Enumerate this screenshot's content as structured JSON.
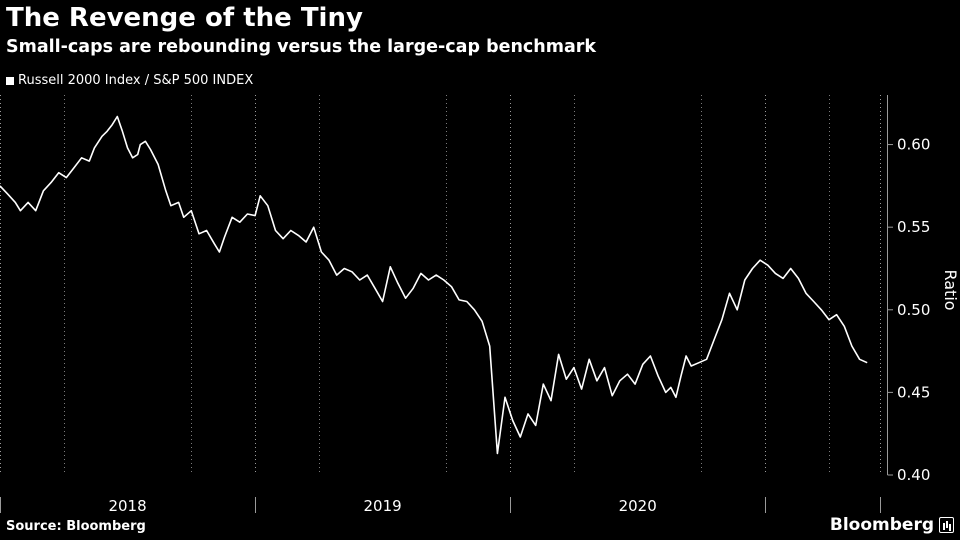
{
  "header": {
    "title": "The Revenge of the Tiny",
    "subtitle": "Small-caps are rebounding versus the large-cap benchmark"
  },
  "legend": {
    "label": "Russell 2000 Index / S&P 500 INDEX",
    "color": "#ffffff"
  },
  "footer": {
    "source": "Source: Bloomberg",
    "brand": "Bloomberg"
  },
  "colors": {
    "background": "#000000",
    "line": "#ffffff",
    "grid": "#9a9a9a",
    "text": "#ffffff"
  },
  "chart_data": {
    "type": "line",
    "title": "The Revenge of the Tiny",
    "subtitle": "Small-caps are rebounding versus the large-cap benchmark",
    "xlabel": "",
    "ylabel": "Ratio",
    "ylim": [
      0.4,
      0.63
    ],
    "yticks": [
      0.4,
      0.45,
      0.5,
      0.55,
      0.6
    ],
    "yticklabels": [
      "0.40",
      "0.45",
      "0.50",
      "0.55",
      "0.60"
    ],
    "xlim": [
      2017.5,
      2020.95
    ],
    "xticks": [
      2017.5,
      2018.5,
      2019.5,
      2020.5,
      2020.95
    ],
    "xticklabels": [
      {
        "label": "2018",
        "x": 2018.0
      },
      {
        "label": "2019",
        "x": 2019.0
      },
      {
        "label": "2020",
        "x": 2020.0
      }
    ],
    "gridlines": "vertical dotted at year boundaries and quarter ticks",
    "series": [
      {
        "name": "Russell 2000 Index / S&P 500 INDEX",
        "x": [
          2017.5,
          2017.53,
          2017.56,
          2017.58,
          2017.61,
          2017.64,
          2017.67,
          2017.7,
          2017.73,
          2017.76,
          2017.79,
          2017.82,
          2017.85,
          2017.87,
          2017.9,
          2017.92,
          2017.94,
          2017.96,
          2017.98,
          2018.0,
          2018.02,
          2018.04,
          2018.05,
          2018.07,
          2018.09,
          2018.12,
          2018.15,
          2018.17,
          2018.2,
          2018.22,
          2018.25,
          2018.28,
          2018.31,
          2018.34,
          2018.36,
          2018.38,
          2018.41,
          2018.44,
          2018.47,
          2018.5,
          2018.52,
          2018.55,
          2018.58,
          2018.61,
          2018.64,
          2018.67,
          2018.7,
          2018.73,
          2018.76,
          2018.79,
          2018.82,
          2018.85,
          2018.88,
          2018.91,
          2018.94,
          2018.97,
          2019.0,
          2019.03,
          2019.06,
          2019.09,
          2019.12,
          2019.15,
          2019.18,
          2019.21,
          2019.24,
          2019.27,
          2019.3,
          2019.33,
          2019.36,
          2019.39,
          2019.42,
          2019.45,
          2019.48,
          2019.51,
          2019.54,
          2019.57,
          2019.6,
          2019.63,
          2019.66,
          2019.69,
          2019.72,
          2019.75,
          2019.78,
          2019.81,
          2019.84,
          2019.87,
          2019.9,
          2019.93,
          2019.96,
          2019.99,
          2020.02,
          2020.05,
          2020.08,
          2020.11,
          2020.13,
          2020.15,
          2020.17,
          2020.19,
          2020.21,
          2020.24,
          2020.27,
          2020.3,
          2020.33,
          2020.36,
          2020.39,
          2020.42,
          2020.45,
          2020.48,
          2020.51,
          2020.54,
          2020.57,
          2020.6,
          2020.63,
          2020.66,
          2020.69,
          2020.72,
          2020.75,
          2020.78,
          2020.81,
          2020.84,
          2020.87,
          2020.9
        ],
        "y": [
          0.575,
          0.57,
          0.565,
          0.56,
          0.565,
          0.56,
          0.572,
          0.577,
          0.583,
          0.58,
          0.586,
          0.592,
          0.59,
          0.598,
          0.605,
          0.608,
          0.612,
          0.617,
          0.608,
          0.598,
          0.592,
          0.594,
          0.6,
          0.602,
          0.597,
          0.588,
          0.572,
          0.563,
          0.565,
          0.556,
          0.56,
          0.546,
          0.548,
          0.54,
          0.535,
          0.544,
          0.556,
          0.553,
          0.558,
          0.557,
          0.569,
          0.563,
          0.548,
          0.543,
          0.548,
          0.545,
          0.541,
          0.55,
          0.535,
          0.53,
          0.521,
          0.525,
          0.523,
          0.518,
          0.521,
          0.513,
          0.505,
          0.526,
          0.516,
          0.507,
          0.513,
          0.522,
          0.518,
          0.521,
          0.518,
          0.514,
          0.506,
          0.505,
          0.5,
          0.493,
          0.478,
          0.413,
          0.447,
          0.433,
          0.423,
          0.437,
          0.43,
          0.455,
          0.445,
          0.473,
          0.458,
          0.465,
          0.452,
          0.47,
          0.457,
          0.465,
          0.448,
          0.457,
          0.461,
          0.455,
          0.467,
          0.472,
          0.46,
          0.45,
          0.453,
          0.447,
          0.46,
          0.472,
          0.466,
          0.468,
          0.47,
          0.482,
          0.494,
          0.51,
          0.5,
          0.518,
          0.525,
          0.53,
          0.527,
          0.522,
          0.519,
          0.525,
          0.519,
          0.51,
          0.505,
          0.5,
          0.494,
          0.497,
          0.49,
          0.478,
          0.47,
          0.468
        ]
      }
    ]
  }
}
